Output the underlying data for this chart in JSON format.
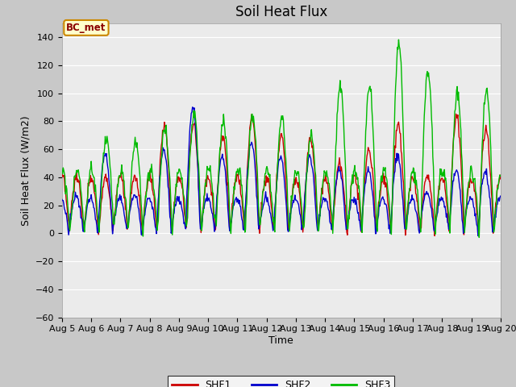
{
  "title": "Soil Heat Flux",
  "xlabel": "Time",
  "ylabel": "Soil Heat Flux (W/m2)",
  "ylim": [
    -60,
    150
  ],
  "yticks": [
    -60,
    -40,
    -20,
    0,
    20,
    40,
    60,
    80,
    100,
    120,
    140
  ],
  "date_labels": [
    "Aug 5",
    "Aug 6",
    "Aug 7",
    "Aug 8",
    "Aug 9",
    "Aug 10",
    "Aug 11",
    "Aug 12",
    "Aug 13",
    "Aug 14",
    "Aug 15",
    "Aug 16",
    "Aug 17",
    "Aug 18",
    "Aug 19",
    "Aug 20"
  ],
  "shf1_color": "#cc0000",
  "shf2_color": "#0000cc",
  "shf3_color": "#00bb00",
  "line_width": 1.0,
  "fig_bg_color": "#c8c8c8",
  "plot_bg_color": "#ebebeb",
  "grid_color": "#ffffff",
  "annotation_text": "BC_met",
  "annotation_bg": "#ffffcc",
  "annotation_border": "#cc8800",
  "title_fontsize": 12,
  "axis_label_fontsize": 9,
  "tick_fontsize": 8
}
